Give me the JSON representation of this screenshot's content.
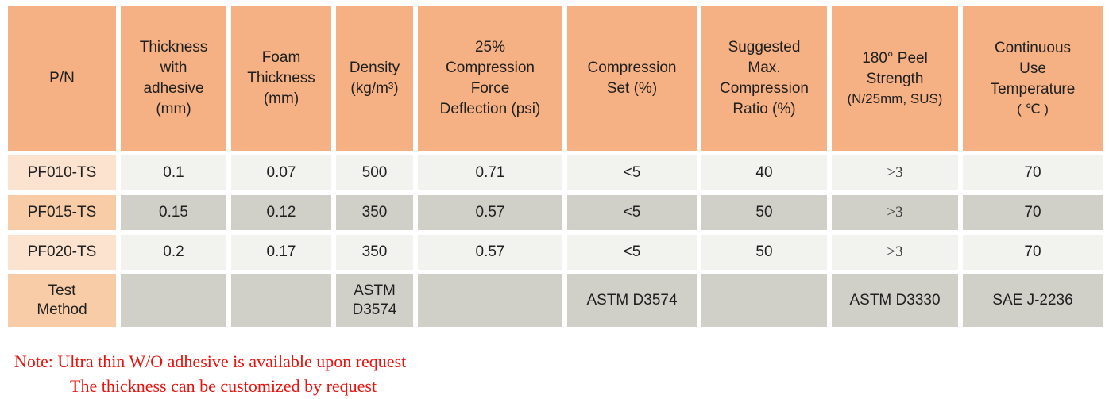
{
  "colors": {
    "header_bg": "#F5B183",
    "pn_light_bg": "#FBE3CF",
    "pn_mid_bg": "#F8CCA6",
    "cell_light_bg": "#F2F2EE",
    "cell_dark_bg": "#D0D0C9",
    "note_red": "#EA120D"
  },
  "table": {
    "headers": [
      {
        "lines": [
          "P/N"
        ]
      },
      {
        "lines": [
          "Thickness",
          "with",
          "adhesive",
          "(mm)"
        ]
      },
      {
        "lines": [
          "Foam",
          "Thickness",
          "(mm)"
        ]
      },
      {
        "lines": [
          "Density",
          "(kg/m³)"
        ]
      },
      {
        "lines": [
          "25%",
          "Compression",
          "Force",
          "Deflection (psi)"
        ]
      },
      {
        "lines": [
          "Compression",
          "Set (%)"
        ]
      },
      {
        "lines": [
          "Suggested",
          "Max.",
          "Compression",
          "Ratio (%)"
        ]
      },
      {
        "lines": [
          "180° Peel",
          "Strength"
        ],
        "sub": "(N/25mm, SUS)"
      },
      {
        "lines": [
          "Continuous",
          "Use",
          "Temperature"
        ],
        "sub": "( ℃ )"
      }
    ],
    "rows": [
      {
        "pn": "PF010-TS",
        "values": [
          "0.1",
          "0.07",
          "500",
          "0.71",
          "<5",
          "40",
          ">3",
          "70"
        ]
      },
      {
        "pn": "PF015-TS",
        "values": [
          "0.15",
          "0.12",
          "350",
          "0.57",
          "<5",
          "50",
          ">3",
          "70"
        ]
      },
      {
        "pn": "PF020-TS",
        "values": [
          "0.2",
          "0.17",
          "350",
          "0.57",
          "<5",
          "50",
          ">3",
          "70"
        ]
      }
    ],
    "test_method_row": {
      "label": "Test Method",
      "values": [
        "",
        "",
        "ASTM D3574",
        "",
        "ASTM D3574",
        "",
        "ASTM D3330",
        "SAE J-2236"
      ]
    }
  },
  "notes": {
    "line1": "Note: Ultra thin W/O adhesive is available upon request",
    "line2": "The thickness can be customized by request"
  }
}
